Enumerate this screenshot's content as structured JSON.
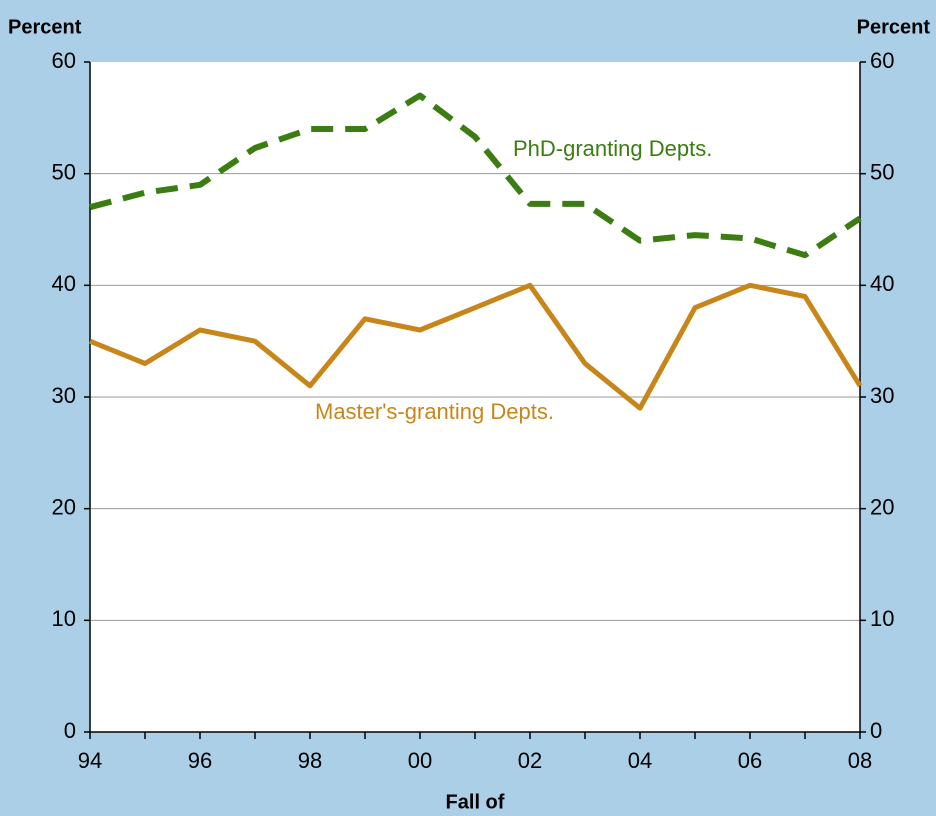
{
  "chart_data": {
    "type": "line",
    "y_title": "Percent",
    "y2_title": "Percent",
    "x_title": "Fall of",
    "categories": [
      "94",
      null,
      "96",
      null,
      "98",
      null,
      "00",
      null,
      "02",
      null,
      "04",
      null,
      "06",
      null,
      "08"
    ],
    "series": [
      {
        "name": "PhD-granting Depts.",
        "color": "#3b7d12",
        "dashed": true,
        "values": [
          47,
          48.3,
          49,
          52.3,
          54,
          54,
          57,
          53.3,
          47.3,
          47.3,
          44,
          44.5,
          44.2,
          42.7,
          46
        ]
      },
      {
        "name": "Master's-granting Depts.",
        "color": "#c8861a",
        "dashed": false,
        "values": [
          35,
          33,
          36,
          35,
          31,
          37,
          36,
          38,
          40,
          33,
          29,
          38,
          40,
          39,
          31
        ]
      }
    ],
    "ylim": [
      0,
      60
    ],
    "yticks": [
      0,
      10,
      20,
      30,
      40,
      50,
      60
    ],
    "y2lim": [
      0,
      60
    ],
    "y2ticks": [
      0,
      10,
      20,
      30,
      40,
      50,
      60
    ],
    "grid": true
  }
}
